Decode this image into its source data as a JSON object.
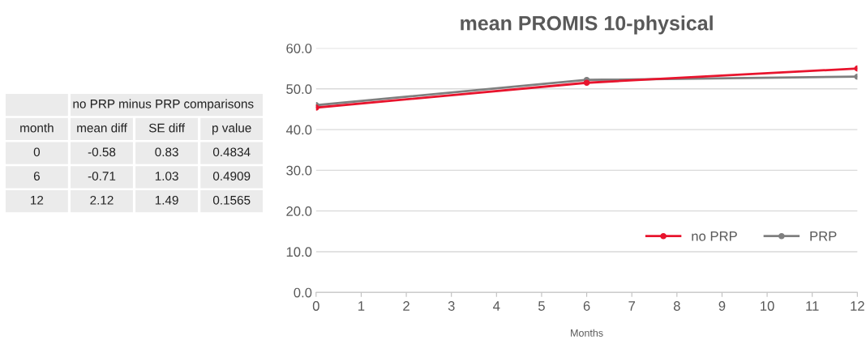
{
  "chart_data": [
    {
      "type": "other",
      "annotations": [
        "no PRP minus PRP comparisons",
        "month",
        "mean diff",
        "SE diff",
        "p value",
        "0",
        "-0.58",
        "0.83",
        "0.4834",
        "6",
        "-0.71",
        "1.03",
        "0.4909",
        "12",
        "2.12",
        "1.49",
        "0.1565"
      ]
    },
    {
      "type": "line",
      "title": "mean PROMIS 10-physical",
      "xlabel": "Months",
      "x": [
        0,
        6,
        12
      ],
      "series": [
        {
          "name": "no PRP",
          "color": "#e8142d",
          "values": [
            45.4,
            51.5,
            55.0
          ]
        },
        {
          "name": "PRP",
          "color": "#7f7f7f",
          "values": [
            46.0,
            52.2,
            53.0
          ]
        }
      ],
      "xlim": [
        0,
        12
      ],
      "xticks": [
        0,
        1,
        2,
        3,
        4,
        5,
        6,
        7,
        8,
        9,
        10,
        11,
        12
      ],
      "ylim": [
        0,
        60
      ],
      "yticks": [
        {
          "value": 0,
          "label": "0.0"
        },
        {
          "value": 10,
          "label": "10.0"
        },
        {
          "value": 20,
          "label": "20.0"
        },
        {
          "value": 30,
          "label": "30.0"
        },
        {
          "value": 40,
          "label": "40.0"
        },
        {
          "value": 50,
          "label": "50.0"
        },
        {
          "value": 60,
          "label": "60.0"
        }
      ],
      "grid": "y",
      "legend": "lower right",
      "marker": "circle",
      "line_style": "solid"
    }
  ]
}
